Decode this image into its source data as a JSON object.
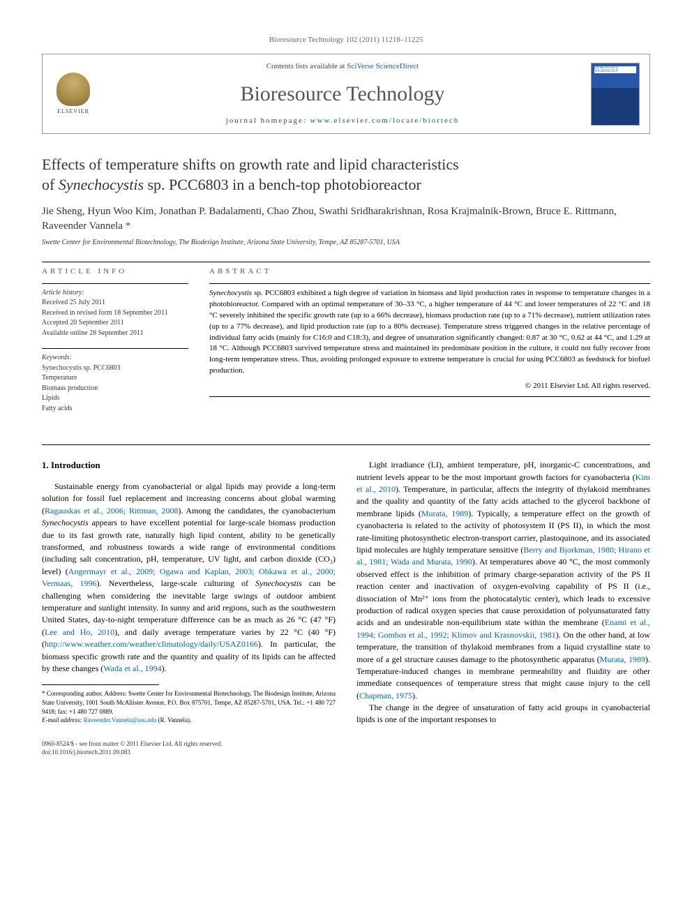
{
  "citation": "Bioresource Technology 102 (2011) 11218–11225",
  "header": {
    "contents_prefix": "Contents lists available at ",
    "contents_link": "SciVerse ScienceDirect",
    "journal": "Bioresource Technology",
    "homepage_prefix": "journal homepage: ",
    "homepage_link": "www.elsevier.com/locate/biortech",
    "elsevier": "ELSEVIER",
    "cover_label": "BIORESOURCE TECHNOLOGY"
  },
  "title": {
    "line1": "Effects of temperature shifts on growth rate and lipid characteristics",
    "line2_pre": "of ",
    "line2_species": "Synechocystis",
    "line2_post": " sp. PCC6803 in a bench-top photobioreactor"
  },
  "authors": "Jie Sheng, Hyun Woo Kim, Jonathan P. Badalamenti, Chao Zhou, Swathi Sridharakrishnan, Rosa Krajmalnik-Brown, Bruce E. Rittmann, Raveender Vannela",
  "corr_mark": "*",
  "affiliation": "Swette Center for Environmental Biotechnology, The Biodesign Institute, Arizona State University, Tempe, AZ 85287-5701, USA",
  "info": {
    "heading": "ARTICLE INFO",
    "history_label": "Article history:",
    "history": [
      "Received 25 July 2011",
      "Received in revised form 18 September 2011",
      "Accepted 20 September 2011",
      "Available online 28 September 2011"
    ],
    "keywords_label": "Keywords:",
    "keywords": [
      "Synechocystis sp. PCC6803",
      "Temperature",
      "Biomass production",
      "Lipids",
      "Fatty acids"
    ]
  },
  "abstract": {
    "heading": "ABSTRACT",
    "text_pre": "Synechocystis",
    "text": " sp. PCC6803 exhibited a high degree of variation in biomass and lipid production rates in response to temperature changes in a photobioreactor. Compared with an optimal temperature of 30–33 °C, a higher temperature of 44 °C and lower temperatures of 22 °C and 18 °C severely inhibited the specific growth rate (up to a 66% decrease), biomass production rate (up to a 71% decrease), nutrient utilization rates (up to a 77% decrease), and lipid production rate (up to a 80% decrease). Temperature stress triggered changes in the relative percentage of individual fatty acids (mainly for C16:0 and C18:3), and degree of unsaturation significantly changed: 0.87 at 30 °C, 0.62 at 44 °C, and 1.29 at 18 °C. Although PCC6803 survived temperature stress and maintained its predominate position in the culture, it could not fully recover from long-term temperature stress. Thus, avoiding prolonged exposure to extreme temperature is crucial for using PCC6803 as feedstock for biofuel production.",
    "copyright": "© 2011 Elsevier Ltd. All rights reserved."
  },
  "body": {
    "intro_heading": "1. Introduction",
    "left_p1_a": "Sustainable energy from cyanobacterial or algal lipids may provide a long-term solution for fossil fuel replacement and increasing concerns about global warming (",
    "left_p1_c1": "Ragauskas et al., 2006; Rittman, 2008",
    "left_p1_b": "). Among the candidates, the cyanobacterium ",
    "left_p1_sp": "Synechocystis",
    "left_p1_c": " appears to have excellent potential for large-scale biomass production due to its fast growth rate, naturally high lipid content, ability to be genetically transformed, and robustness towards a wide range of environmental conditions (including salt concentration, pH, temperature, UV light, and carbon dioxide (CO₂) level) (",
    "left_p1_c2": "Angermayr et al., 2009; Ogawa and Kaplan, 2003; Ohkawa et al., 2000; Vermaas, 1996",
    "left_p1_d": "). Nevertheless, large-scale culturing of ",
    "left_p1_sp2": "Synechocystis",
    "left_p1_e": " can be challenging when considering the inevitable large swings of outdoor ambient temperature and sunlight intensity. In sunny and arid regions, such as the southwestern United States, day-to-night temperature difference can be as much as 26 °C (47 °F) (",
    "left_p1_c3": "Lee and Ho, 2010",
    "left_p1_f": "), and daily average temperature varies by 22 °C (40 °F) (",
    "left_p1_c4": "http://www.weather.com/weather/climatology/daily/USAZ0166",
    "left_p1_g": "). In particular, the biomass specific growth rate and the quantity and quality of its lipids can be affected by these changes (",
    "left_p1_c5": "Wada et al., 1994",
    "left_p1_h": ").",
    "right_p1_a": "Light irradiance (LI), ambient temperature, pH, inorganic-C concentrations, and nutrient levels appear to be the most important growth factors for cyanobacteria (",
    "right_p1_c1": "Kim et al., 2010",
    "right_p1_b": "). Temperature, in particular, affects the integrity of thylakoid membranes and the quality and quantity of the fatty acids attached to the glycerol backbone of membrane lipids (",
    "right_p1_c2": "Murata, 1989",
    "right_p1_c": "). Typically, a temperature effect on the growth of cyanobacteria is related to the activity of photosystem II (PS II), in which the most rate-limiting photosynthetic electron-transport carrier, plastoquinone, and its associated lipid molecules are highly temperature sensitive (",
    "right_p1_c3": "Berry and Bjorkman, 1980; Hirano et al., 1981; Wada and Murata, 1990",
    "right_p1_d": "). At temperatures above 40 °C, the most commonly observed effect is the inhibition of primary charge-separation activity of the PS II reaction center and inactivation of oxygen-evolving capability of PS II (i.e., dissociation of Mn²⁺ ions from the photocatalytic center), which leads to excessive production of radical oxygen species that cause peroxidation of polyunsaturated fatty acids and an undesirable non-equilibrium state within the membrane (",
    "right_p1_c4": "Enami et al., 1994; Gombos et al., 1992; Klimov and Krasnovskii, 1981",
    "right_p1_e": "). On the other hand, at low temperature, the transition of thylakoid membranes from a liquid crystalline state to more of a gel structure causes damage to the photosynthetic apparatus (",
    "right_p1_c5": "Murata, 1989",
    "right_p1_f": "). Temperature-induced changes in membrane permeability and fluidity are other immediate consequences of temperature stress that might cause injury to the cell (",
    "right_p1_c6": "Chapman, 1975",
    "right_p1_g": ").",
    "right_p2": "The change in the degree of unsaturation of fatty acid groups in cyanobacterial lipids is one of the important responses to"
  },
  "footnote": {
    "corr": "* Corresponding author. Address: Swette Center for Environmental Biotechnology, The Biodesign Institute, Arizona State University, 1001 South McAllister Avenue, P.O. Box 875701, Tempe, AZ 85287-5701, USA. Tel.: +1 480 727 9418; fax: +1 480 727 0889.",
    "email_label": "E-mail address: ",
    "email": "Raveender.Vannela@asu.edu",
    "email_suffix": " (R. Vannela)."
  },
  "bottom": {
    "line1": "0960-8524/$ - see front matter © 2011 Elsevier Ltd. All rights reserved.",
    "line2": "doi:10.1016/j.biortech.2011.09.083"
  },
  "colors": {
    "link": "#0066aa",
    "text": "#000000",
    "muted": "#555555"
  }
}
